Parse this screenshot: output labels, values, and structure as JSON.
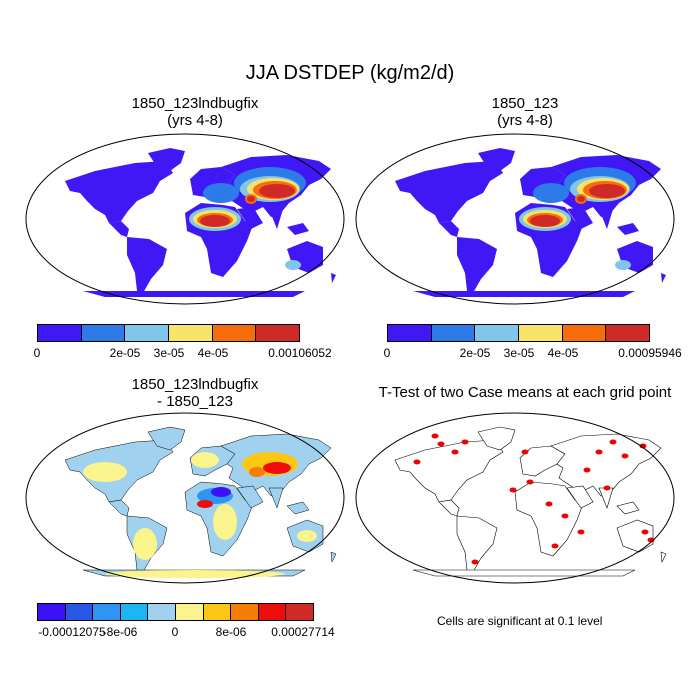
{
  "title": "JJA DSTDEP (kg/m2/d)",
  "panels": {
    "tl": {
      "line1": "1850_123lndbugfix",
      "line2": "(yrs 4-8)"
    },
    "tr": {
      "line1": "1850_123",
      "line2": "(yrs 4-8)"
    },
    "bl": {
      "line1": "1850_123lndbugfix",
      "line2": "- 1850_123"
    },
    "br": {
      "line1": "T-Test of two Case means at each grid point"
    }
  },
  "colorbars": {
    "tl": {
      "colors": [
        "#4017f5",
        "#2d7be9",
        "#7fc6ea",
        "#f8e36a",
        "#f66d0b",
        "#d02a28"
      ],
      "labels": [
        "0",
        "2e-05",
        "3e-05",
        "4e-05",
        "0.00106052"
      ]
    },
    "tr": {
      "colors": [
        "#4017f5",
        "#2d7be9",
        "#7fc6ea",
        "#f8e36a",
        "#f66d0b",
        "#d02a28"
      ],
      "labels": [
        "0",
        "2e-05",
        "3e-05",
        "4e-05",
        "0.00095946"
      ]
    },
    "bl": {
      "colors": [
        "#3c11f5",
        "#2a58e6",
        "#2e96f2",
        "#1bb7f3",
        "#a0d2ef",
        "#fbf38c",
        "#fbc614",
        "#f67e06",
        "#ef0d0b",
        "#d02a28"
      ],
      "labels": [
        "-0.00012075",
        "-8e-06",
        "0",
        "8e-06",
        "0.00027714"
      ]
    }
  },
  "note": "Cells are significant at 0.1 level",
  "colors": {
    "ocean": "#ffffff",
    "land_base": "#4017f5",
    "diff_land": "#a8d0ee",
    "signif": "#ee0000"
  }
}
